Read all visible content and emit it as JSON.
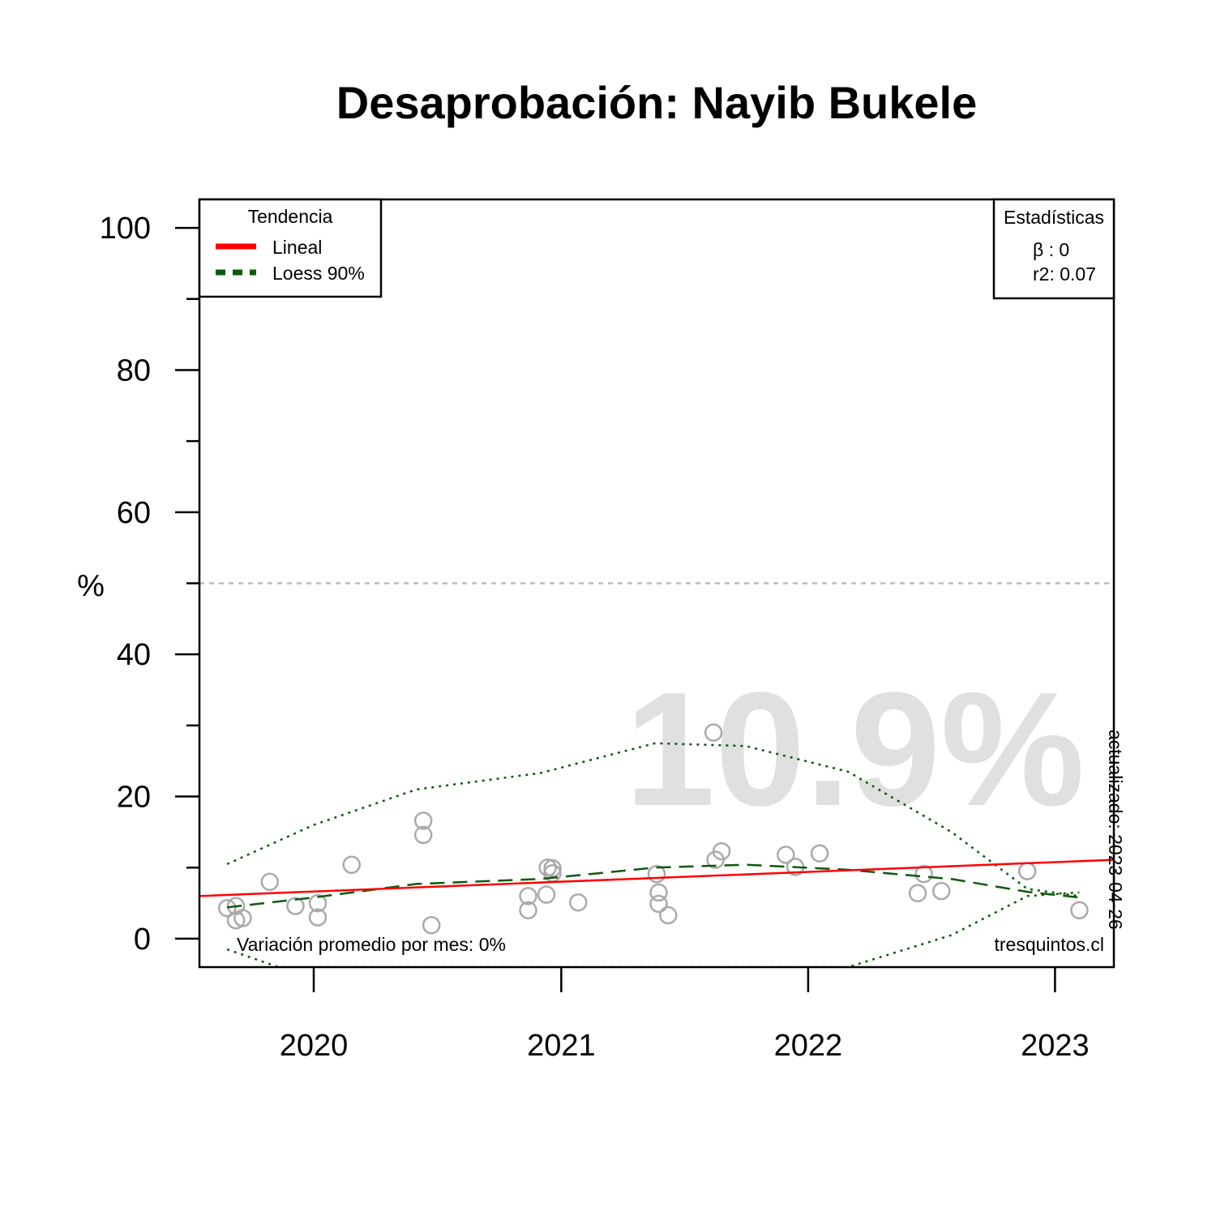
{
  "chart_data": {
    "type": "scatter",
    "title": "Desaprobación: Nayib Bukele",
    "ylabel": "%",
    "xlabel": "",
    "ylim": [
      -4,
      104
    ],
    "xlim": [
      "2019-07-16",
      "2023-03-29"
    ],
    "y_ticks": [
      0,
      20,
      40,
      60,
      80,
      100
    ],
    "y_minor_ticks": [
      10,
      30,
      50,
      70,
      90
    ],
    "x_ticks": [
      {
        "label": "2020",
        "date": "2020-01-01"
      },
      {
        "label": "2021",
        "date": "2021-01-01"
      },
      {
        "label": "2022",
        "date": "2022-01-01"
      },
      {
        "label": "2023",
        "date": "2023-01-01"
      }
    ],
    "reference_line": {
      "y": 50,
      "style": "dotted",
      "color": "#bbbbbb"
    },
    "big_value": "10.9%",
    "legend_trend": {
      "title": "Tendencia",
      "items": [
        {
          "label": "Lineal",
          "color": "#ff0000",
          "style": "solid"
        },
        {
          "label": "Loess 90%",
          "color": "#0b5a0b",
          "style": "dashed"
        }
      ]
    },
    "legend_stats": {
      "title": "Estadísticas",
      "beta": "β : 0",
      "r2": "r2: 0.07"
    },
    "note_variation": "Variación promedio por mes: 0%",
    "source": "tresquintos.cl",
    "updated": "actualizado: 2023-04-26",
    "points": [
      {
        "x": "2019-08-26",
        "y": 4.3
      },
      {
        "x": "2019-09-08",
        "y": 4.6
      },
      {
        "x": "2019-09-08",
        "y": 2.6
      },
      {
        "x": "2019-09-18",
        "y": 2.9
      },
      {
        "x": "2019-10-28",
        "y": 8.0
      },
      {
        "x": "2019-12-05",
        "y": 4.6
      },
      {
        "x": "2020-01-07",
        "y": 5.0
      },
      {
        "x": "2020-01-07",
        "y": 3.0
      },
      {
        "x": "2020-02-26",
        "y": 10.4
      },
      {
        "x": "2020-06-11",
        "y": 16.6
      },
      {
        "x": "2020-06-11",
        "y": 14.6
      },
      {
        "x": "2020-06-23",
        "y": 1.9
      },
      {
        "x": "2020-11-13",
        "y": 6.0
      },
      {
        "x": "2020-11-13",
        "y": 4.0
      },
      {
        "x": "2020-12-10",
        "y": 6.2
      },
      {
        "x": "2020-12-12",
        "y": 10.0
      },
      {
        "x": "2020-12-19",
        "y": 9.9
      },
      {
        "x": "2020-12-19",
        "y": 9.2
      },
      {
        "x": "2021-01-26",
        "y": 5.1
      },
      {
        "x": "2021-05-22",
        "y": 9.1
      },
      {
        "x": "2021-05-25",
        "y": 6.5
      },
      {
        "x": "2021-05-25",
        "y": 4.9
      },
      {
        "x": "2021-06-08",
        "y": 3.3
      },
      {
        "x": "2021-08-14",
        "y": 29.0
      },
      {
        "x": "2021-08-17",
        "y": 11.1
      },
      {
        "x": "2021-08-26",
        "y": 12.3
      },
      {
        "x": "2021-11-29",
        "y": 11.8
      },
      {
        "x": "2021-12-13",
        "y": 10.1
      },
      {
        "x": "2022-01-18",
        "y": 12.0
      },
      {
        "x": "2022-06-12",
        "y": 6.4
      },
      {
        "x": "2022-06-21",
        "y": 9.1
      },
      {
        "x": "2022-07-17",
        "y": 6.7
      },
      {
        "x": "2022-11-21",
        "y": 9.5
      },
      {
        "x": "2023-02-06",
        "y": 4.0
      }
    ],
    "linear_trend": [
      {
        "x": "2019-07-16",
        "y": 6.0
      },
      {
        "x": "2023-03-29",
        "y": 11.1
      }
    ],
    "loess": [
      {
        "x": "2019-08-26",
        "y": 4.4
      },
      {
        "x": "2020-01-01",
        "y": 5.8
      },
      {
        "x": "2020-06-01",
        "y": 7.7
      },
      {
        "x": "2020-12-01",
        "y": 8.4
      },
      {
        "x": "2021-05-20",
        "y": 10.0
      },
      {
        "x": "2021-10-01",
        "y": 10.4
      },
      {
        "x": "2022-03-01",
        "y": 9.7
      },
      {
        "x": "2022-08-01",
        "y": 8.4
      },
      {
        "x": "2022-11-21",
        "y": 6.6
      },
      {
        "x": "2023-02-06",
        "y": 5.8
      }
    ],
    "loess_upper": [
      {
        "x": "2019-08-26",
        "y": 10.5
      },
      {
        "x": "2020-01-01",
        "y": 16.0
      },
      {
        "x": "2020-06-01",
        "y": 21.0
      },
      {
        "x": "2020-12-01",
        "y": 23.3
      },
      {
        "x": "2021-05-20",
        "y": 27.5
      },
      {
        "x": "2021-10-01",
        "y": 27.1
      },
      {
        "x": "2022-03-01",
        "y": 23.5
      },
      {
        "x": "2022-08-01",
        "y": 15.0
      },
      {
        "x": "2022-11-21",
        "y": 7.0
      },
      {
        "x": "2023-02-06",
        "y": 6.0
      }
    ],
    "loess_lower": [
      {
        "x": "2019-08-26",
        "y": -1.5
      },
      {
        "x": "2019-11-10",
        "y": -4.0
      },
      {
        "x": "2022-03-01",
        "y": -4.0
      },
      {
        "x": "2022-08-01",
        "y": 0.5
      },
      {
        "x": "2022-11-21",
        "y": 6.0
      },
      {
        "x": "2023-02-06",
        "y": 6.5
      }
    ]
  }
}
